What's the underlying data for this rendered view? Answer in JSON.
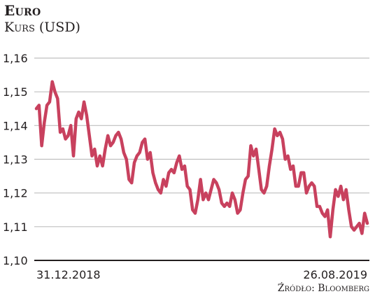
{
  "title": "Euro",
  "subtitle": "Kurs (USD)",
  "source": "Źródło: Bloomberg",
  "colors": {
    "line": "#c8415e",
    "grid": "#bfbfbf",
    "axis": "#231f20"
  },
  "chart_data": {
    "type": "line",
    "title": "Euro",
    "ylabel": "Kurs (USD)",
    "ylim": [
      1.1,
      1.16
    ],
    "y_ticks": [
      "1,16",
      "1,15",
      "1,14",
      "1,13",
      "1,12",
      "1,11",
      "1,10"
    ],
    "y_tick_values": [
      1.16,
      1.15,
      1.14,
      1.13,
      1.12,
      1.11,
      1.1
    ],
    "x_range": [
      "2018-12-31",
      "2019-08-26"
    ],
    "x_labels": [
      "31.12.2018",
      "26.08.2019"
    ],
    "grid": true,
    "series": [
      {
        "values": [
          1.145,
          1.146,
          1.134,
          1.141,
          1.146,
          1.147,
          1.153,
          1.15,
          1.148,
          1.138,
          1.139,
          1.136,
          1.137,
          1.14,
          1.131,
          1.142,
          1.144,
          1.142,
          1.147,
          1.143,
          1.137,
          1.131,
          1.133,
          1.128,
          1.131,
          1.128,
          1.133,
          1.137,
          1.134,
          1.135,
          1.137,
          1.138,
          1.136,
          1.132,
          1.13,
          1.124,
          1.123,
          1.129,
          1.131,
          1.132,
          1.135,
          1.136,
          1.13,
          1.132,
          1.126,
          1.123,
          1.121,
          1.12,
          1.124,
          1.122,
          1.126,
          1.127,
          1.126,
          1.129,
          1.131,
          1.127,
          1.128,
          1.122,
          1.121,
          1.115,
          1.114,
          1.118,
          1.124,
          1.118,
          1.12,
          1.118,
          1.121,
          1.124,
          1.123,
          1.121,
          1.117,
          1.116,
          1.117,
          1.116,
          1.12,
          1.118,
          1.114,
          1.115,
          1.12,
          1.124,
          1.125,
          1.134,
          1.131,
          1.133,
          1.127,
          1.121,
          1.12,
          1.122,
          1.128,
          1.133,
          1.139,
          1.137,
          1.138,
          1.136,
          1.13,
          1.131,
          1.127,
          1.128,
          1.122,
          1.122,
          1.126,
          1.126,
          1.12,
          1.122,
          1.123,
          1.122,
          1.116,
          1.116,
          1.114,
          1.113,
          1.115,
          1.107,
          1.115,
          1.121,
          1.119,
          1.122,
          1.118,
          1.121,
          1.115,
          1.11,
          1.109,
          1.11,
          1.111,
          1.108,
          1.114,
          1.111
        ]
      }
    ]
  }
}
